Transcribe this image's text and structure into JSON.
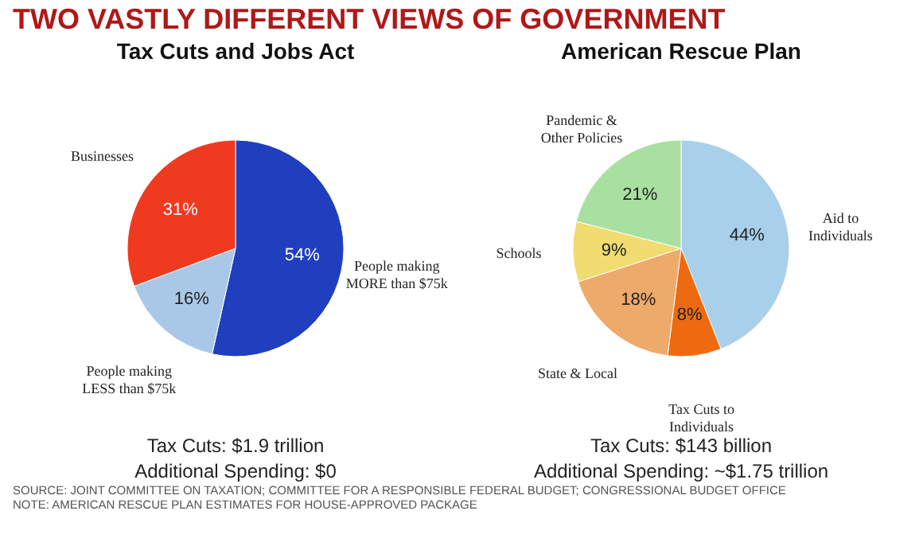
{
  "chart_data": [
    {
      "type": "pie",
      "title": "Tax Cuts and Jobs Act",
      "categories": [
        "People making MORE than $75k",
        "People making LESS than $75k",
        "Businesses"
      ],
      "values": [
        54,
        16,
        31
      ],
      "colors": [
        "#1f3fbf",
        "#a9c8e8",
        "#f03a1f"
      ],
      "value_labels": [
        "54%",
        "16%",
        "31%"
      ],
      "annotations": [
        "TWO VASTLY DIFFERENT VIEWS OF GOVERNMENT",
        "Tax Cuts: $1.9 trillion",
        "Additional Spending: $0"
      ]
    },
    {
      "type": "pie",
      "title": "American Rescue Plan",
      "categories": [
        "Aid to Individuals",
        "Tax Cuts to Individuals",
        "State & Local",
        "Schools",
        "Pandemic & Other Policies"
      ],
      "values": [
        44,
        8,
        18,
        9,
        21
      ],
      "colors": [
        "#a8d0ea",
        "#ee6a10",
        "#eeaa6a",
        "#f0dc70",
        "#a8e0a0"
      ],
      "value_labels": [
        "44%",
        "8%",
        "18%",
        "9%",
        "21%"
      ],
      "annotations": [
        "Tax Cuts: $143 billion",
        "Additional Spending: ~$1.75 trillion",
        "SOURCE: JOINT COMMITTEE ON TAXATION; COMMITTEE FOR A RESPONSIBLE FEDERAL BUDGET; CONGRESSIONAL BUDGET OFFICE",
        "NOTE: AMERICAN RESCUE PLAN ESTIMATES FOR HOUSE-APPROVED PACKAGE"
      ]
    }
  ]
}
